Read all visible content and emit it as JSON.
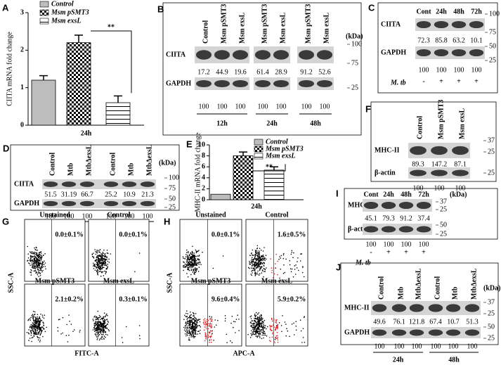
{
  "chart_data": [
    {
      "panel": "A",
      "type": "bar",
      "y_label": "CIITA mRNA fold change",
      "categories": [
        "24h"
      ],
      "series": [
        {
          "name": "Control",
          "color": "#bdbdbd",
          "pattern": "solid",
          "values": [
            1.2
          ],
          "errors": [
            0.12
          ]
        },
        {
          "name": "Msm pSMT3",
          "color": "#000000",
          "pattern": "checker",
          "values": [
            2.2
          ],
          "errors": [
            0.2
          ]
        },
        {
          "name": "Msm exsL",
          "color": "#000000",
          "pattern": "hstripe",
          "values": [
            0.6
          ],
          "errors": [
            0.18
          ]
        }
      ],
      "ylim": [
        0,
        3
      ],
      "yticks": [
        0,
        1,
        2,
        3
      ],
      "annotation": "**"
    },
    {
      "panel": "E",
      "type": "bar",
      "y_label": "MHC-II mRNA fold change",
      "categories": [
        "24h"
      ],
      "series": [
        {
          "name": "Control",
          "color": "#bdbdbd",
          "pattern": "solid",
          "values": [
            1.0
          ]
        },
        {
          "name": "Msm pSMT3",
          "color": "#000000",
          "pattern": "checker",
          "values": [
            8.0
          ],
          "errors": [
            0.7
          ]
        },
        {
          "name": "Msm exsL",
          "color": "#000000",
          "pattern": "hstripe",
          "values": [
            5.4
          ],
          "errors": [
            0.6
          ]
        }
      ],
      "ylim": [
        0,
        10
      ],
      "yticks": [
        0,
        2,
        4,
        6,
        8,
        10
      ],
      "annotation": "**"
    }
  ],
  "blots": {
    "B": {
      "letter": "B",
      "kda": "(kDa)",
      "lanes": [
        "Control",
        "Msm pSMT3",
        "Msm exsL",
        "Msm pSMT3",
        "Msm exsL",
        "Msm pSMT3",
        "Msm exsL"
      ],
      "rows": [
        {
          "name": "CIITA",
          "values": [
            17.2,
            44.9,
            19.6,
            61.4,
            28.9,
            91.2,
            52.6
          ],
          "markers": [
            "100",
            "75"
          ]
        },
        {
          "name": "GAPDH",
          "values": [
            100,
            100,
            100,
            100,
            100,
            100,
            100
          ],
          "markers": [
            "25"
          ]
        }
      ],
      "groups": [
        "12h",
        "24h",
        "48h"
      ]
    },
    "C": {
      "letter": "C",
      "lanes": [
        "Cont",
        "24h",
        "48h",
        "72h"
      ],
      "rows": [
        {
          "name": "CIITA",
          "values": [
            72.3,
            85.8,
            63.2,
            10.1
          ],
          "markers": [
            "100",
            "75"
          ]
        },
        {
          "name": "GAPDH",
          "values": [
            100,
            100,
            100,
            100
          ],
          "markers": [
            "50",
            "25"
          ]
        }
      ],
      "treatment": {
        "name": "M. tb",
        "values": [
          "-",
          "+",
          "+",
          "+"
        ]
      }
    },
    "D": {
      "letter": "D",
      "kda": "(kDa)",
      "lanes": [
        "Control",
        "Mtb",
        "MtbΔexsL",
        "Control",
        "Mtb",
        "MtbΔexsL"
      ],
      "rows": [
        {
          "name": "CIITA",
          "values": [
            51.5,
            31.19,
            66.7,
            25.2,
            10.9,
            21.3
          ],
          "markers": [
            "100",
            "75"
          ]
        },
        {
          "name": "GAPDH",
          "values": [
            100,
            100,
            100,
            100,
            100,
            100
          ],
          "markers": [
            "50",
            "25"
          ]
        }
      ],
      "groups": [
        "24h",
        "48h"
      ]
    },
    "F": {
      "letter": "F",
      "lanes": [
        "Control",
        "Msm pSMT3",
        "Msm exsL"
      ],
      "rows": [
        {
          "name": "MHC-II",
          "values": [
            89.3,
            147.2,
            87.1
          ],
          "markers": [
            "37",
            "25"
          ]
        },
        {
          "name": "β-actin",
          "values": [
            100,
            100,
            100
          ],
          "markers": [
            "25"
          ]
        }
      ]
    },
    "I": {
      "letter": "I",
      "kda": "(kDa)",
      "lanes": [
        "Cont",
        "24h",
        "48h",
        "72h"
      ],
      "rows": [
        {
          "name": "MHC-II",
          "values": [
            45.1,
            79.3,
            91.2,
            37.4
          ],
          "markers": [
            "37",
            "25"
          ]
        },
        {
          "name": "β-actin",
          "values": [
            100,
            100,
            100,
            100
          ],
          "markers": [
            "50",
            "25"
          ]
        }
      ],
      "treatment": {
        "name": "M. tb",
        "values": [
          "-",
          "+",
          "+",
          "+"
        ]
      }
    },
    "J": {
      "letter": "J",
      "kda": "(kDa)",
      "lanes": [
        "Control",
        "Mtb",
        "MtbΔexsL",
        "Control",
        "Mtb",
        "MtbΔexsL"
      ],
      "rows": [
        {
          "name": "MHC-II",
          "values": [
            49.6,
            76.1,
            121.8,
            67.4,
            10.7,
            51.3
          ],
          "markers": [
            "37",
            "25"
          ]
        },
        {
          "name": "GAPDH",
          "values": [
            100,
            100,
            100,
            100,
            100,
            100
          ],
          "markers": [
            "50",
            "25"
          ]
        }
      ],
      "groups": [
        "24h",
        "48h"
      ]
    }
  },
  "flows": {
    "G": {
      "letter": "G",
      "y_label": "SSC-A",
      "x_label": "FITC-A",
      "panels": [
        {
          "label": "Unstained",
          "percent": "0.0±0.1%"
        },
        {
          "label": "Control",
          "percent": "0.0±0.1%"
        },
        {
          "label": "Msm pSMT3",
          "percent": "2.1±0.2%"
        },
        {
          "label": "Msm exsL",
          "percent": "0.3±0.1%"
        }
      ]
    },
    "H": {
      "letter": "H",
      "y_label": "SSC-A",
      "x_label": "APC-A",
      "panels": [
        {
          "label": "Unstained",
          "percent": "0.0±0.1%"
        },
        {
          "label": "Control",
          "percent": "1.6±0.5%"
        },
        {
          "label": "Msm pSMT3",
          "percent": "9.6±0.4%"
        },
        {
          "label": "Msm exsL",
          "percent": "5.9±0.2%"
        }
      ]
    }
  }
}
